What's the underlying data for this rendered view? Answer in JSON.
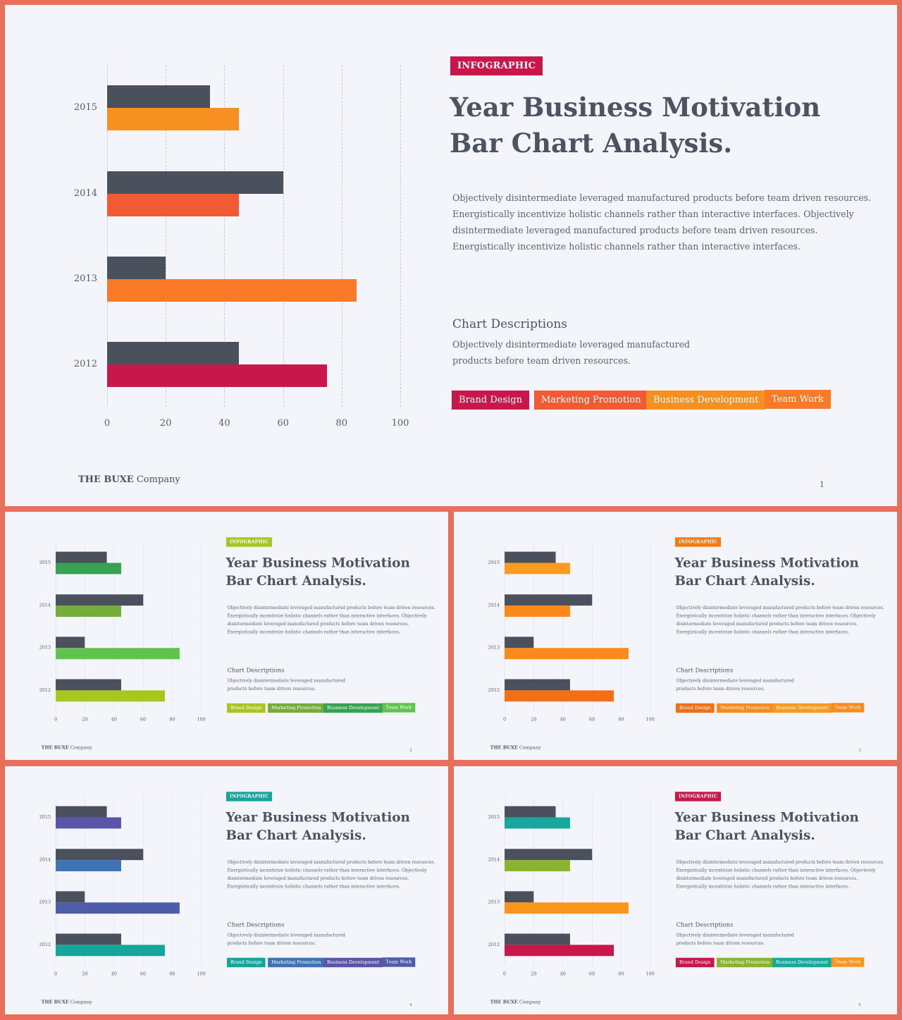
{
  "colors": {
    "background": "#e8705b",
    "slide": "#f4f5fb",
    "dark_bar": "#4a515d",
    "text": "#4c5361"
  },
  "content": {
    "badge": "INFOGRAPHIC",
    "title_line1": "Year Business Motivation",
    "title_line2": "Bar Chart Analysis.",
    "description": [
      "Objectively disintermediate leveraged manufactured products before team  driven resources.",
      "Energistically incentivize holistic channels rather than interactive interfaces. Objectively",
      "disintermediate leveraged manufactured products before team driven resources.",
      "Energistically incentivize holistic channels rather than interactive interfaces."
    ],
    "chart_desc_title": "Chart Descriptions",
    "chart_desc_text": [
      "Objectively disintermediate leveraged manufactured",
      "products before team  driven resources."
    ],
    "legend": [
      "Brand Design",
      "Marketing Promotion",
      "Business Development",
      "Team Work"
    ],
    "company_bold": "THE BUXE",
    "company_rest": " Company"
  },
  "chart_data": {
    "type": "bar",
    "orientation": "horizontal",
    "categories": [
      "2015",
      "2014",
      "2013",
      "2012"
    ],
    "x_ticks": [
      "0",
      "20",
      "40",
      "60",
      "80",
      "100"
    ],
    "xlim": [
      0,
      100
    ],
    "grid": true,
    "series": [
      {
        "values": [
          35,
          60,
          20,
          45
        ]
      },
      {
        "values": [
          45,
          45,
          85,
          75
        ]
      }
    ]
  },
  "slides": [
    {
      "page": "1",
      "badge_color": "#c8174a",
      "bar_colors": [
        "#f78f21",
        "#f15a33",
        "#fb7a27",
        "#c8174a"
      ],
      "legend_colors": [
        "#c8174a",
        "#f15a33",
        "#f78f21",
        "#fb7a27"
      ]
    },
    {
      "page": "2",
      "badge_color": "#a5c625",
      "bar_colors": [
        "#35a152",
        "#74ad3a",
        "#62c24e",
        "#a8c61e"
      ],
      "legend_colors": [
        "#a8c61e",
        "#74ad3a",
        "#35a152",
        "#62c24e"
      ]
    },
    {
      "page": "3",
      "badge_color": "#f47a13",
      "bar_colors": [
        "#fb9a20",
        "#fb8a1a",
        "#fb8a1a",
        "#f36f16"
      ],
      "legend_colors": [
        "#f36f16",
        "#fb8a1a",
        "#fb9a20",
        "#fb8a1a"
      ]
    },
    {
      "page": "4",
      "badge_color": "#18a39d",
      "bar_colors": [
        "#5a55a6",
        "#3e74b6",
        "#4e5da9",
        "#16a59a"
      ],
      "legend_colors": [
        "#16a59a",
        "#3e74b6",
        "#5a55a6",
        "#4e5da9"
      ]
    },
    {
      "page": "5",
      "badge_color": "#c8174a",
      "bar_colors": [
        "#17a79c",
        "#8ab32f",
        "#f7951d",
        "#c8174a"
      ],
      "legend_colors": [
        "#c8174a",
        "#8ab32f",
        "#17a79c",
        "#f7951d"
      ]
    }
  ]
}
